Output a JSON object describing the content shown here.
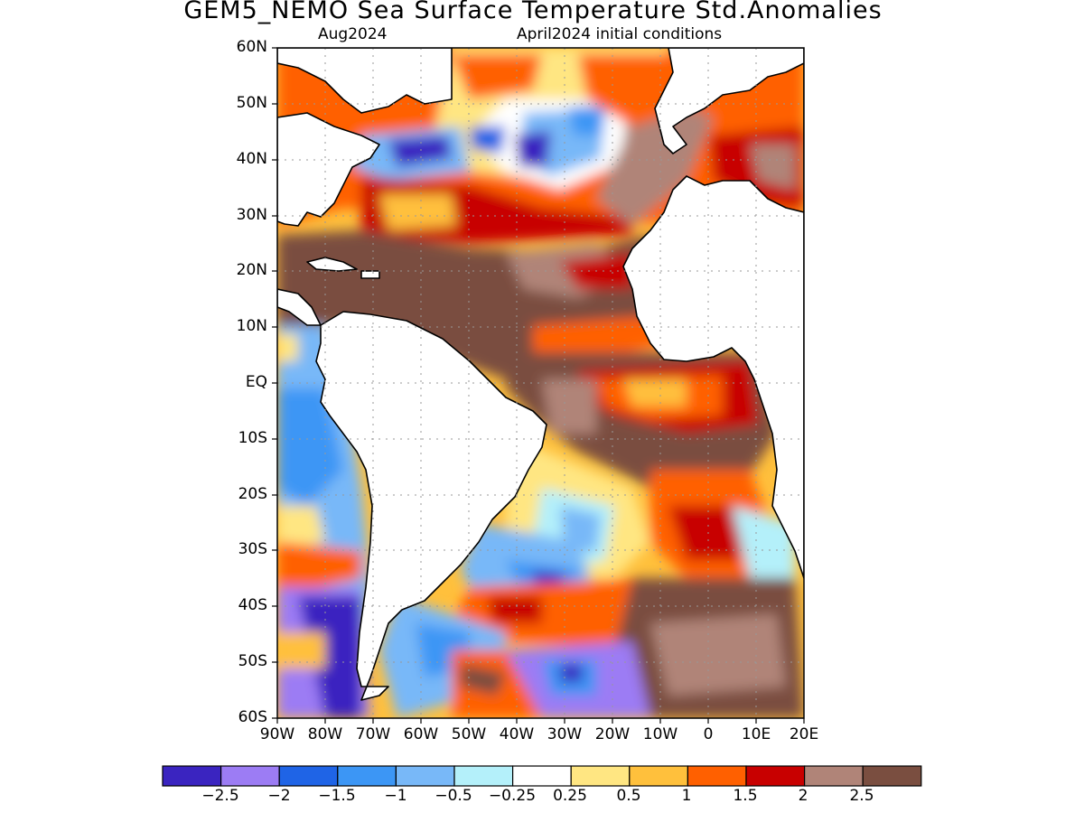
{
  "title": "GEM5_NEMO Sea Surface Temperature Std.Anomalies",
  "subtitle_left": "Aug2024",
  "subtitle_right": "April2024 initial conditions",
  "lat_labels": [
    "60N",
    "50N",
    "40N",
    "30N",
    "20N",
    "10N",
    "EQ",
    "10S",
    "20S",
    "30S",
    "40S",
    "50S",
    "60S"
  ],
  "lon_labels": [
    "90W",
    "80W",
    "70W",
    "60W",
    "50W",
    "40W",
    "30W",
    "20W",
    "10W",
    "0",
    "10E",
    "20E"
  ],
  "colorbar": {
    "colors": [
      "#3a24c0",
      "#9c7cf4",
      "#1f64e6",
      "#3c96f5",
      "#78b8f8",
      "#b4f0fa",
      "#ffffff",
      "#ffe682",
      "#ffc03c",
      "#ff6000",
      "#c80000",
      "#b08478",
      "#7a4e40"
    ],
    "labels": [
      "−2.5",
      "−2",
      "−1.5",
      "−1",
      "−0.5",
      "−0.25",
      "0.25",
      "0.5",
      "1",
      "1.5",
      "2",
      "2.5"
    ]
  },
  "colors": {
    "land": "#ffffff",
    "coast": "#000000",
    "grid": "#999999"
  }
}
